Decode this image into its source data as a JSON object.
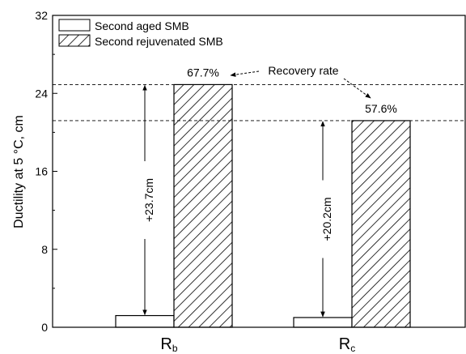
{
  "chart_data": {
    "type": "bar",
    "categories": [
      {
        "main": "R",
        "sub": "b"
      },
      {
        "main": "R",
        "sub": "c"
      }
    ],
    "series": [
      {
        "name": "Second aged SMB",
        "values": [
          1.2,
          1.0
        ],
        "pattern": "solid",
        "fill": "#ffffff"
      },
      {
        "name": "Second rejuvenated SMB",
        "values": [
          24.9,
          21.2
        ],
        "pattern": "hatch",
        "fill": "#ffffff"
      }
    ],
    "ylabel": "Ductility at 5 °C, cm",
    "ylim": [
      0,
      32
    ],
    "yticks": [
      "0",
      "8",
      "16",
      "24",
      "32"
    ],
    "legend": "top-left",
    "grid": false,
    "annotations": {
      "recovery_label": "Recovery rate",
      "rates": [
        "67.7%",
        "57.6%"
      ],
      "increases": [
        "+23.7cm",
        "+20.2cm"
      ]
    }
  }
}
